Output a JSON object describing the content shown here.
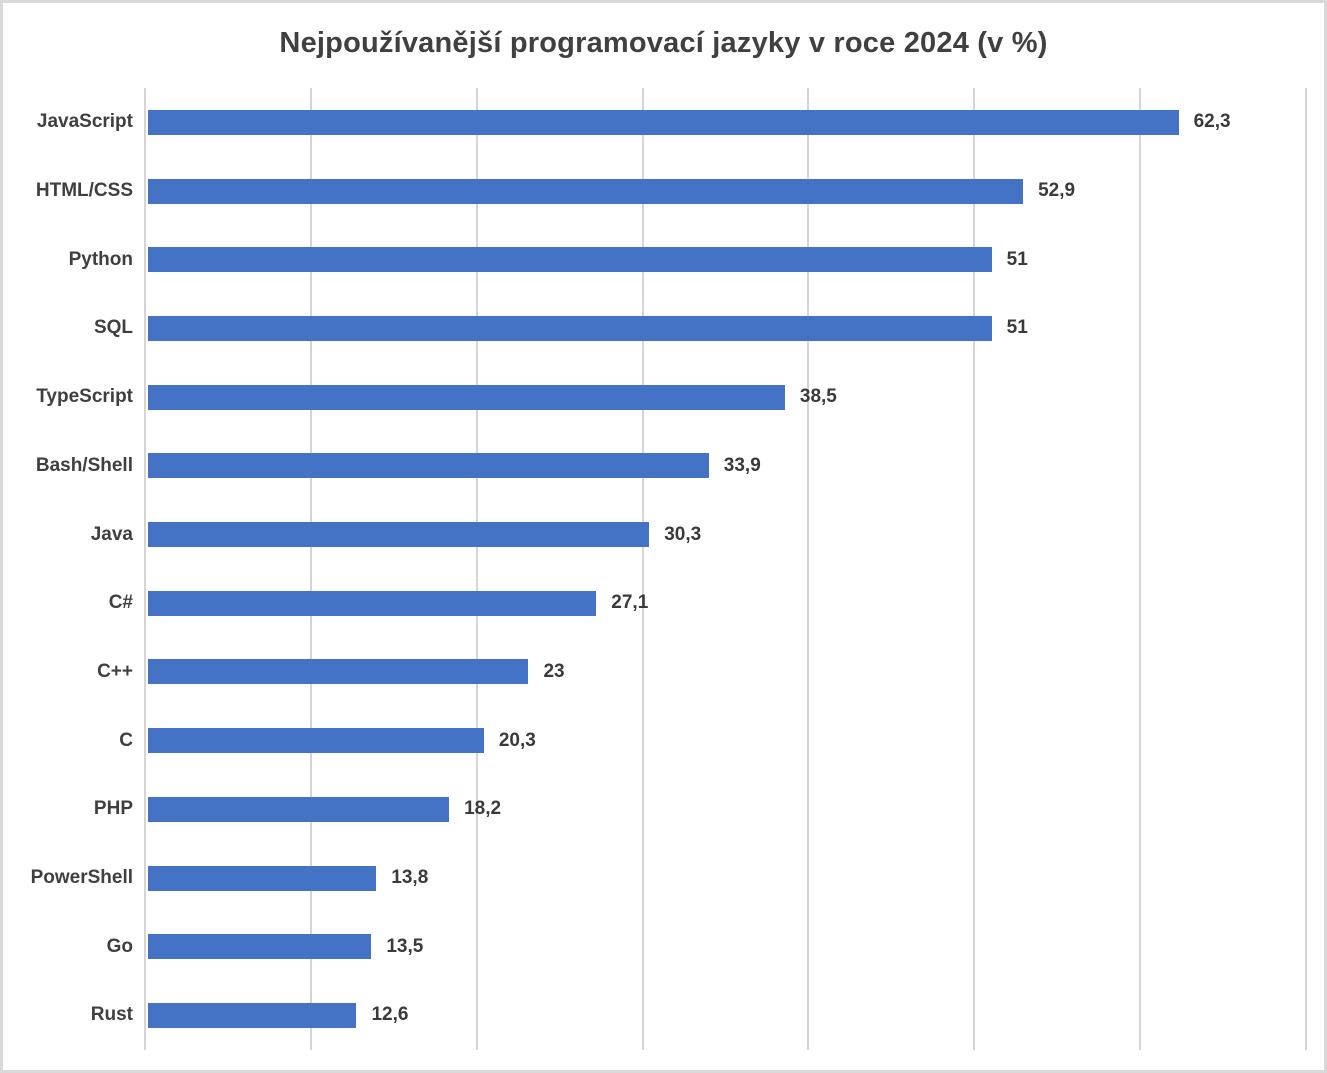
{
  "chart_data": {
    "type": "bar",
    "orientation": "horizontal",
    "title": "Nejpoužívanější programovací jazyky v roce 2024 (v %)",
    "categories": [
      "JavaScript",
      "HTML/CSS",
      "Python",
      "SQL",
      "TypeScript",
      "Bash/Shell",
      "Java",
      "C#",
      "C++",
      "C",
      "PHP",
      "PowerShell",
      "Go",
      "Rust"
    ],
    "values": [
      62.3,
      52.9,
      51,
      51,
      38.5,
      33.9,
      30.3,
      27.1,
      23,
      20.3,
      18.2,
      13.8,
      13.5,
      12.6
    ],
    "value_labels": [
      "62,3",
      "52,9",
      "51",
      "51",
      "38,5",
      "33,9",
      "30,3",
      "27,1",
      "23",
      "20,3",
      "18,2",
      "13,8",
      "13,5",
      "12,6"
    ],
    "xlabel": "",
    "ylabel": "",
    "xlim": [
      0,
      70
    ],
    "gridline_step": 10,
    "grid": true,
    "axis_tick_labels_visible": false,
    "legend": false,
    "bar_color": "#4472C4",
    "text_color": "#3F3F3F",
    "gridline_color": "#D5D5D5",
    "frame_color": "#D9D9D9",
    "background_color": "#FFFFFF"
  }
}
